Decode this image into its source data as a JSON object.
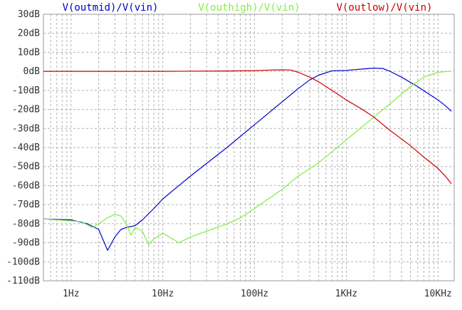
{
  "chart_data": {
    "type": "line",
    "x_scale": "log",
    "x_unit": "Hz",
    "xlim": [
      0.5,
      15000
    ],
    "ylim": [
      -110,
      30
    ],
    "grid": true,
    "x_major_ticks": [
      {
        "value": 1,
        "label": "1Hz"
      },
      {
        "value": 10,
        "label": "10Hz"
      },
      {
        "value": 100,
        "label": "100Hz"
      },
      {
        "value": 1000,
        "label": "1KHz"
      },
      {
        "value": 10000,
        "label": "10KHz"
      }
    ],
    "y_ticks": [
      {
        "value": 30,
        "label": "30dB"
      },
      {
        "value": 20,
        "label": "20dB"
      },
      {
        "value": 10,
        "label": "10dB"
      },
      {
        "value": 0,
        "label": "0dB"
      },
      {
        "value": -10,
        "label": "-10dB"
      },
      {
        "value": -20,
        "label": "-20dB"
      },
      {
        "value": -30,
        "label": "-30dB"
      },
      {
        "value": -40,
        "label": "-40dB"
      },
      {
        "value": -50,
        "label": "-50dB"
      },
      {
        "value": -60,
        "label": "-60dB"
      },
      {
        "value": -70,
        "label": "-70dB"
      },
      {
        "value": -80,
        "label": "-80dB"
      },
      {
        "value": -90,
        "label": "-90dB"
      },
      {
        "value": -100,
        "label": "-100dB"
      },
      {
        "value": -110,
        "label": "-110dB"
      }
    ],
    "series": [
      {
        "name": "V(outmid)/V(vin)",
        "color": "#0000cc",
        "points": [
          [
            0.5,
            -77.5
          ],
          [
            1,
            -78
          ],
          [
            1.5,
            -80
          ],
          [
            2,
            -83
          ],
          [
            2.5,
            -94
          ],
          [
            3,
            -87
          ],
          [
            3.5,
            -83
          ],
          [
            4,
            -82
          ],
          [
            4.5,
            -81.5
          ],
          [
            5,
            -81
          ],
          [
            6,
            -78
          ],
          [
            8,
            -72
          ],
          [
            10,
            -67
          ],
          [
            20,
            -55
          ],
          [
            50,
            -40
          ],
          [
            100,
            -28
          ],
          [
            200,
            -16
          ],
          [
            300,
            -9
          ],
          [
            400,
            -4.5
          ],
          [
            500,
            -2
          ],
          [
            700,
            0.3
          ],
          [
            1000,
            0.5
          ],
          [
            1500,
            1.2
          ],
          [
            2000,
            1.7
          ],
          [
            2500,
            1.5
          ],
          [
            3000,
            0
          ],
          [
            4000,
            -3
          ],
          [
            6000,
            -8
          ],
          [
            8000,
            -12
          ],
          [
            10000,
            -15
          ],
          [
            12000,
            -18
          ],
          [
            14000,
            -21
          ]
        ]
      },
      {
        "name": "V(outhigh)/V(vin)",
        "color": "#80ee40",
        "points": [
          [
            0.5,
            -77.5
          ],
          [
            1,
            -78.5
          ],
          [
            1.3,
            -79
          ],
          [
            1.7,
            -82
          ],
          [
            2,
            -80
          ],
          [
            2.5,
            -77
          ],
          [
            3,
            -75
          ],
          [
            3.5,
            -76
          ],
          [
            4,
            -80
          ],
          [
            4.5,
            -86
          ],
          [
            5,
            -82
          ],
          [
            6,
            -84
          ],
          [
            7,
            -91
          ],
          [
            8,
            -88
          ],
          [
            10,
            -85
          ],
          [
            15,
            -90
          ],
          [
            20,
            -87
          ],
          [
            30,
            -84
          ],
          [
            50,
            -80
          ],
          [
            70,
            -77
          ],
          [
            100,
            -72
          ],
          [
            200,
            -62
          ],
          [
            300,
            -55
          ],
          [
            500,
            -48
          ],
          [
            1000,
            -36
          ],
          [
            2000,
            -24
          ],
          [
            3000,
            -17
          ],
          [
            5000,
            -8
          ],
          [
            7000,
            -3
          ],
          [
            10000,
            -0.5
          ],
          [
            13000,
            0
          ],
          [
            14000,
            0
          ]
        ]
      },
      {
        "name": "V(outlow)/V(vin)",
        "color": "#cc0000",
        "points": [
          [
            0.5,
            0
          ],
          [
            10,
            0
          ],
          [
            50,
            0.2
          ],
          [
            100,
            0.4
          ],
          [
            150,
            0.7
          ],
          [
            200,
            0.8
          ],
          [
            250,
            0.7
          ],
          [
            300,
            -0.5
          ],
          [
            400,
            -3
          ],
          [
            500,
            -5.5
          ],
          [
            700,
            -10
          ],
          [
            1000,
            -15
          ],
          [
            1500,
            -20
          ],
          [
            2000,
            -24
          ],
          [
            3000,
            -31
          ],
          [
            5000,
            -39
          ],
          [
            7000,
            -45
          ],
          [
            10000,
            -51
          ],
          [
            12000,
            -55
          ],
          [
            14000,
            -59
          ]
        ]
      }
    ]
  }
}
